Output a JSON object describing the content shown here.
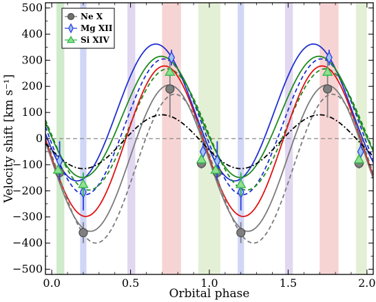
{
  "chart_data": {
    "type": "line",
    "xlabel": "Orbital phase",
    "ylabel": "Velocity shift [km s⁻¹]",
    "xlim": [
      -0.04,
      2.04
    ],
    "ylim": [
      -520,
      520
    ],
    "x_ticks": [
      0.0,
      0.5,
      1.0,
      1.5,
      2.0
    ],
    "x_tick_labels": [
      "0.0",
      "0.5",
      "1.0",
      "1.5",
      "2.0"
    ],
    "y_ticks": [
      -500,
      -400,
      -300,
      -200,
      -100,
      0,
      100,
      200,
      300,
      400,
      500
    ],
    "y_tick_labels": [
      "−500",
      "−400",
      "−300",
      "−200",
      "−100",
      "0",
      "100",
      "200",
      "300",
      "400",
      "500"
    ],
    "grid": false,
    "legend_position": "top-left",
    "legend": [
      {
        "label": "Ne X",
        "color": "#707070",
        "marker": "circle"
      },
      {
        "label": "Mg XII",
        "color": "#2b3ee0",
        "marker": "diamond"
      },
      {
        "label": "Si XIV",
        "color": "#31b54a",
        "marker": "triangle"
      }
    ],
    "phase_bands": [
      {
        "x0": 0.03,
        "x1": 0.08,
        "color": "#a9dba3"
      },
      {
        "x0": 0.18,
        "x1": 0.22,
        "color": "#aab4ee"
      },
      {
        "x0": 0.48,
        "x1": 0.53,
        "color": "#c8b6e4"
      },
      {
        "x0": 0.7,
        "x1": 0.82,
        "color": "#f0b0b0"
      },
      {
        "x0": 0.93,
        "x1": 1.07,
        "color": "#cde4b4"
      },
      {
        "x0": 1.18,
        "x1": 1.22,
        "color": "#aab4ee"
      },
      {
        "x0": 1.48,
        "x1": 1.53,
        "color": "#c8b6e4"
      },
      {
        "x0": 1.7,
        "x1": 1.82,
        "color": "#f0b0b0"
      },
      {
        "x0": 1.93,
        "x1": 2.0,
        "color": "#cde4b4"
      }
    ],
    "zero_line": {
      "y": 0,
      "color": "#888888",
      "style": "dashed"
    },
    "curves": [
      {
        "color": "#1f2fd0",
        "style": "solid",
        "amplitude": 262,
        "offset": 100,
        "peak_phase": 0.66
      },
      {
        "color": "#1f2fd0",
        "style": "dashed",
        "amplitude": 260,
        "offset": 45,
        "peak_phase": 0.71
      },
      {
        "color": "#1e8a1e",
        "style": "solid",
        "amplitude": 232,
        "offset": 83,
        "peak_phase": 0.695
      },
      {
        "color": "#1e8a1e",
        "style": "dashed",
        "amplitude": 232,
        "offset": 35,
        "peak_phase": 0.735
      },
      {
        "color": "#e01010",
        "style": "solid",
        "amplitude": 288,
        "offset": -10,
        "peak_phase": 0.715
      },
      {
        "color": "#7a7a7a",
        "style": "solid",
        "amplitude": 280,
        "offset": -75,
        "peak_phase": 0.745
      },
      {
        "color": "#7a7a7a",
        "style": "dashed",
        "amplitude": 285,
        "offset": -115,
        "peak_phase": 0.78
      },
      {
        "color": "#000000",
        "style": "dashdot",
        "amplitude": 103,
        "offset": -12,
        "peak_phase": 0.7
      }
    ],
    "series": [
      {
        "name": "Ne X",
        "color": "#808080",
        "marker": "circle",
        "x": [
          0.05,
          0.2,
          0.75,
          0.95,
          1.05,
          1.2,
          1.75,
          1.95
        ],
        "y": [
          -130,
          -360,
          190,
          -95,
          -130,
          -360,
          190,
          -95
        ],
        "yerr": [
          20,
          40,
          110,
          20,
          20,
          40,
          110,
          20
        ]
      },
      {
        "name": "Mg XII",
        "color": "#2b3ee0",
        "marker": "diamond",
        "x": [
          0.05,
          0.2,
          0.76,
          0.96,
          1.05,
          1.2,
          1.76,
          1.96
        ],
        "y": [
          -85,
          -205,
          310,
          -50,
          -85,
          -205,
          310,
          -50
        ],
        "yerr": [
          75,
          70,
          30,
          35,
          75,
          70,
          30,
          35
        ]
      },
      {
        "name": "Si XIV",
        "color": "#31b54a",
        "marker": "triangle",
        "x": [
          0.04,
          0.2,
          0.75,
          0.95,
          1.04,
          1.2,
          1.75,
          1.95
        ],
        "y": [
          -120,
          -175,
          255,
          -80,
          -120,
          -175,
          255,
          -80
        ],
        "yerr": [
          20,
          45,
          20,
          20,
          20,
          45,
          20,
          20
        ]
      }
    ]
  }
}
